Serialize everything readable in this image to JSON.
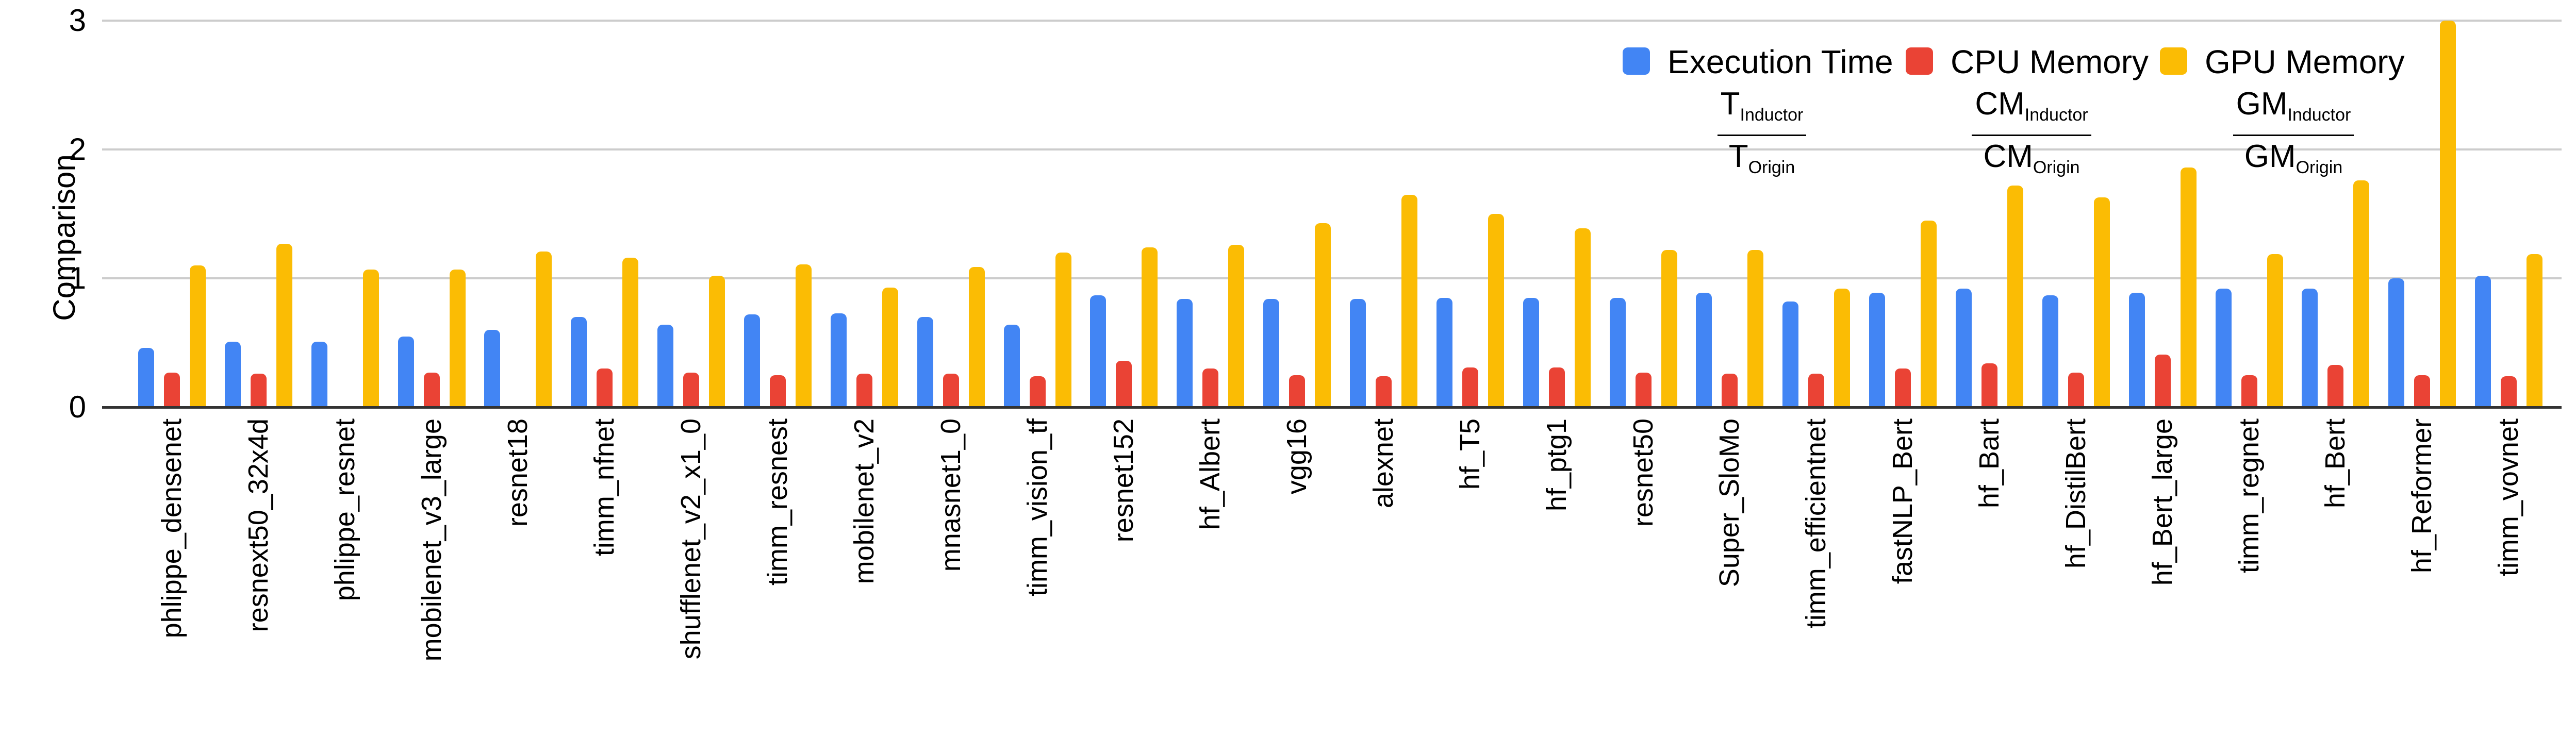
{
  "chart_data": {
    "type": "bar",
    "title": "",
    "ylabel": "Comparison",
    "ylim": [
      0,
      3
    ],
    "yticks": [
      0,
      1,
      2,
      3
    ],
    "grid": true,
    "legend_position": "top-right",
    "categories": [
      "phlippe_densenet",
      "resnext50_32x4d",
      "phlippe_resnet",
      "mobilenet_v3_large",
      "resnet18",
      "timm_nfnet",
      "shufflenet_v2_x1_0",
      "timm_resnest",
      "mobilenet_v2",
      "mnasnet1_0",
      "timm_vision_tf",
      "resnet152",
      "hf_Albert",
      "vgg16",
      "alexnet",
      "hf_T5",
      "hf_ptg1",
      "resnet50",
      "Super_SloMo",
      "timm_efficientnet",
      "fastNLP_Bert",
      "hf_Bart",
      "hf_DistilBert",
      "hf_Bert_large",
      "timm_regnet",
      "hf_Bert",
      "hf_Reformer",
      "timm_vovnet"
    ],
    "series": [
      {
        "name": "Execution Time",
        "color": "#4285F4",
        "formula": {
          "num": "T",
          "num_sub": "Inductor",
          "den": "T",
          "den_sub": "Origin"
        },
        "values": [
          0.46,
          0.51,
          0.51,
          0.55,
          0.6,
          0.7,
          0.64,
          0.72,
          0.73,
          0.7,
          0.64,
          0.87,
          0.84,
          0.84,
          0.84,
          0.85,
          0.85,
          0.85,
          0.89,
          0.82,
          0.89,
          0.92,
          0.87,
          0.89,
          0.92,
          0.92,
          1.0,
          1.02
        ]
      },
      {
        "name": "CPU Memory",
        "color": "#EA4335",
        "formula": {
          "num": "CM",
          "num_sub": "Inductor",
          "den": "CM",
          "den_sub": "Origin"
        },
        "values": [
          0.27,
          0.26,
          null,
          0.27,
          null,
          0.3,
          0.27,
          0.25,
          0.26,
          0.26,
          0.24,
          0.36,
          0.3,
          0.25,
          0.24,
          0.31,
          0.31,
          0.27,
          0.26,
          0.26,
          0.3,
          0.34,
          0.27,
          0.41,
          0.25,
          0.33,
          0.25,
          0.24
        ]
      },
      {
        "name": "GPU Memory",
        "color": "#FBBC04",
        "formula": {
          "num": "GM",
          "num_sub": "Inductor",
          "den": "GM",
          "den_sub": "Origin"
        },
        "values": [
          1.1,
          1.27,
          1.07,
          1.07,
          1.21,
          1.16,
          1.02,
          1.11,
          0.93,
          1.09,
          1.2,
          1.24,
          1.26,
          1.43,
          1.65,
          1.5,
          1.39,
          1.22,
          1.22,
          0.92,
          1.45,
          1.72,
          1.63,
          1.86,
          1.19,
          1.76,
          3.0,
          1.19
        ]
      }
    ],
    "axis_colors": {
      "gridline": "#cccccc",
      "baseline": "#333333",
      "text": "#000000"
    }
  }
}
